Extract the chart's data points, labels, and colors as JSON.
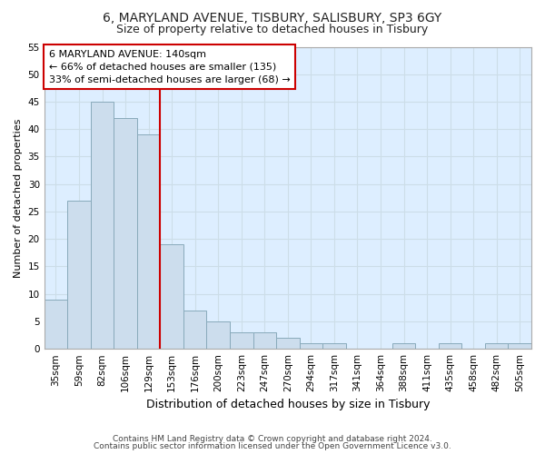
{
  "title1": "6, MARYLAND AVENUE, TISBURY, SALISBURY, SP3 6GY",
  "title2": "Size of property relative to detached houses in Tisbury",
  "xlabel": "Distribution of detached houses by size in Tisbury",
  "ylabel": "Number of detached properties",
  "categories": [
    "35sqm",
    "59sqm",
    "82sqm",
    "106sqm",
    "129sqm",
    "153sqm",
    "176sqm",
    "200sqm",
    "223sqm",
    "247sqm",
    "270sqm",
    "294sqm",
    "317sqm",
    "341sqm",
    "364sqm",
    "388sqm",
    "411sqm",
    "435sqm",
    "458sqm",
    "482sqm",
    "505sqm"
  ],
  "values": [
    9,
    27,
    45,
    42,
    39,
    19,
    7,
    5,
    3,
    3,
    2,
    1,
    1,
    0,
    0,
    1,
    0,
    1,
    0,
    1,
    1
  ],
  "bar_color": "#ccdded",
  "bar_edge_color": "#88aabb",
  "vline_color": "#cc0000",
  "vline_x": 4.5,
  "annotation_line1": "6 MARYLAND AVENUE: 140sqm",
  "annotation_line2": "← 66% of detached houses are smaller (135)",
  "annotation_line3": "33% of semi-detached houses are larger (68) →",
  "annotation_box_facecolor": "#ffffff",
  "annotation_box_edgecolor": "#cc0000",
  "ylim": [
    0,
    55
  ],
  "yticks": [
    0,
    5,
    10,
    15,
    20,
    25,
    30,
    35,
    40,
    45,
    50,
    55
  ],
  "grid_color": "#ccdde8",
  "fig_facecolor": "#ffffff",
  "ax_facecolor": "#ddeeff",
  "footer1": "Contains HM Land Registry data © Crown copyright and database right 2024.",
  "footer2": "Contains public sector information licensed under the Open Government Licence v3.0.",
  "title1_fontsize": 10,
  "title2_fontsize": 9,
  "xlabel_fontsize": 9,
  "ylabel_fontsize": 8,
  "tick_fontsize": 7.5,
  "footer_fontsize": 6.5,
  "annotation_fontsize": 8
}
